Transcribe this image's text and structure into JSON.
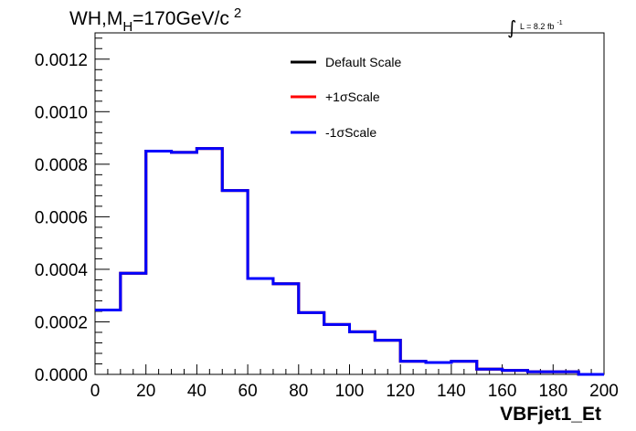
{
  "chart_data": {
    "type": "line",
    "title": "",
    "annotation": {
      "process": "WH,M",
      "subscript": "H",
      "mass": "=170GeV/c",
      "superscript": "2"
    },
    "lumi": {
      "integral_symbol": "∫",
      "text": "L = 8.2 fb",
      "superscript": "-1"
    },
    "xlabel": "VBFjet1_Et",
    "ylabel": "",
    "xlim": [
      0,
      200
    ],
    "ylim": [
      0,
      0.0013
    ],
    "x_ticks": [
      {
        "value": 0,
        "label": "0"
      },
      {
        "value": 20,
        "label": "20"
      },
      {
        "value": 40,
        "label": "40"
      },
      {
        "value": 60,
        "label": "60"
      },
      {
        "value": 80,
        "label": "80"
      },
      {
        "value": 100,
        "label": "100"
      },
      {
        "value": 120,
        "label": "120"
      },
      {
        "value": 140,
        "label": "140"
      },
      {
        "value": 160,
        "label": "160"
      },
      {
        "value": 180,
        "label": "180"
      },
      {
        "value": 200,
        "label": "200"
      }
    ],
    "y_ticks": [
      {
        "value": 0,
        "label": "0.0000"
      },
      {
        "value": 0.0002,
        "label": "0.0002"
      },
      {
        "value": 0.0004,
        "label": "0.0004"
      },
      {
        "value": 0.0006,
        "label": "0.0006"
      },
      {
        "value": 0.0008,
        "label": "0.0008"
      },
      {
        "value": 0.001,
        "label": "0.0010"
      },
      {
        "value": 0.0012,
        "label": "0.0012"
      }
    ],
    "bin_edges": [
      0,
      10,
      20,
      30,
      40,
      50,
      60,
      70,
      80,
      90,
      100,
      110,
      120,
      130,
      140,
      150,
      160,
      170,
      180,
      190,
      200
    ],
    "series": [
      {
        "name": "Default Scale",
        "color": "#000000",
        "values": [
          0.000245,
          0.000385,
          0.00085,
          0.000845,
          0.00086,
          0.0007,
          0.000365,
          0.000345,
          0.000235,
          0.00019,
          0.000162,
          0.00013,
          5e-05,
          4.5e-05,
          5e-05,
          2e-05,
          1.5e-05,
          1e-05,
          1e-05,
          0.0
        ]
      },
      {
        "name": "+1σScale",
        "color": "#ff0000",
        "values": [
          0.000245,
          0.000385,
          0.00085,
          0.000845,
          0.00086,
          0.0007,
          0.000365,
          0.000345,
          0.000235,
          0.00019,
          0.000162,
          0.00013,
          5e-05,
          4.5e-05,
          5e-05,
          2e-05,
          1.5e-05,
          1e-05,
          1e-05,
          0.0
        ]
      },
      {
        "name": "-1σScale",
        "color": "#0000ff",
        "values": [
          0.000245,
          0.000385,
          0.00085,
          0.000845,
          0.00086,
          0.0007,
          0.000365,
          0.000345,
          0.000235,
          0.00019,
          0.000162,
          0.00013,
          5e-05,
          4.5e-05,
          5e-05,
          2e-05,
          1.5e-05,
          1e-05,
          1e-05,
          0.0
        ]
      }
    ],
    "grid": false,
    "legend_position": "top-center"
  }
}
